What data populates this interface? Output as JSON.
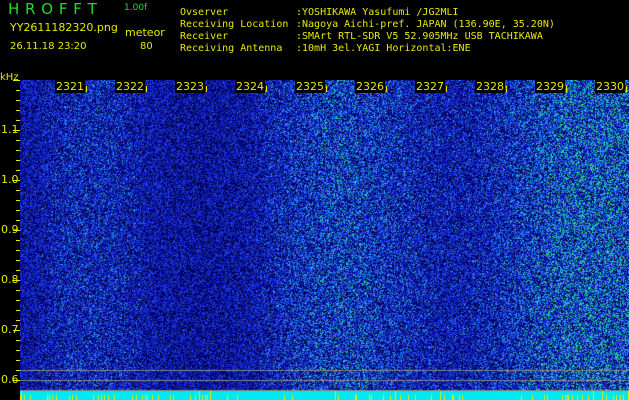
{
  "header": {
    "app": "H R O F F T",
    "version": "1.00f",
    "filename": "YY2611182320.png",
    "datetime": "26.11.18 23:20",
    "meteor_label": "meteor",
    "meteor_count": "80"
  },
  "info": [
    {
      "key": "Ovserver",
      "value": ":YOSHIKAWA Yasufumi /JG2MLI"
    },
    {
      "key": "Receiving Location",
      "value": ":Nagoya Aichi-pref. JAPAN (136.90E, 35.20N)"
    },
    {
      "key": "Receiver",
      "value": ":SMArt RTL-SDR V5 52.905MHz USB TACHIKAWA"
    },
    {
      "key": "Receiving Antenna",
      "value": ":10mH 3el.YAGI Horizontal:ENE"
    }
  ],
  "axis": {
    "unit": "kHz",
    "y_ticks": [
      "1.1",
      "1.0",
      "0.9",
      "0.8",
      "0.7",
      "0.6"
    ],
    "x_ticks": [
      "2321",
      "2322",
      "2323",
      "2324",
      "2325",
      "2326",
      "2327",
      "2328",
      "2329",
      "2330"
    ]
  },
  "colors": {
    "text_yellow": "#e8e800",
    "text_green": "#22dd22",
    "noise_band": "#00e8f0",
    "background": "#000000"
  }
}
